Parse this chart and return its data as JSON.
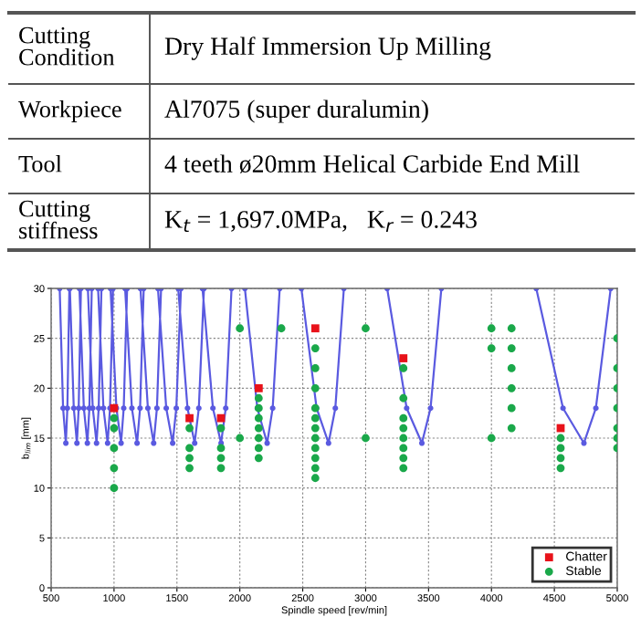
{
  "chart_data": [
    {
      "type": "other",
      "annotations": [
        "Cutting\nCondition",
        "Dry Half Immersion Up Milling",
        "Workpiece",
        "Al7075 (super duralumin)",
        "Tool",
        "4 teeth ø20mm Helical Carbide End Mill",
        "Cutting\nstiffness",
        "K$_{t}$ = 1,697.0MPa,   K$_{r}$ = 0.243"
      ]
    },
    {
      "type": "line",
      "xlabel": "Spindle speed [rev/min]",
      "ylabel": "b$_{lim}$ [mm]",
      "xlim": [
        500,
        5000
      ],
      "ylim": [
        0,
        30
      ],
      "xticks": [
        500,
        1000,
        1500,
        2000,
        2500,
        3000,
        3500,
        4000,
        4500,
        5000
      ],
      "yticks": [
        0,
        5,
        10,
        15,
        20,
        25,
        30
      ],
      "grid": true,
      "legend": "bottom right",
      "series": [
        {
          "type": "line",
          "color": "#5a5ae0",
          "marker": "circle",
          "line_style": "solid",
          "x": [
            568,
            595,
            617,
            629,
            645,
            null,
            649,
            680,
            705,
            719,
            737,
            null,
            725,
            760,
            788,
            804,
            823,
            null,
            792,
            831,
            861,
            878,
            900,
            null,
            873,
            916,
            949,
            968,
            992,
            null,
            972,
            1019,
            1056,
            1077,
            1104,
            null,
            1088,
            1142,
            1183,
            1207,
            1236,
            null,
            1210,
            1269,
            1315,
            1341,
            1374,
            null,
            1349,
            1415,
            1466,
            1495,
            1532,
            null,
            1510,
            1584,
            1641,
            1674,
            1715,
            null,
            1703,
            1786,
            1851,
            1888,
            1934,
            null,
            2040,
            2139,
            2217,
            2261,
            2317,
            null,
            2489,
            2610,
            2705,
            2759,
            2827,
            null,
            3171,
            3326,
            3447,
            3516,
            3602,
            null,
            4356,
            4569,
            4735,
            4830,
            4948
          ],
          "values": [
            30,
            18,
            14.5,
            18,
            30,
            null,
            30,
            18,
            14.5,
            18,
            30,
            null,
            30,
            18,
            14.5,
            18,
            30,
            null,
            30,
            18,
            14.5,
            18,
            30,
            null,
            30,
            18,
            14.5,
            18,
            30,
            null,
            30,
            18,
            14.5,
            18,
            30,
            null,
            30,
            18,
            14.5,
            18,
            30,
            null,
            30,
            18,
            14.5,
            18,
            30,
            null,
            30,
            18,
            14.5,
            18,
            30,
            null,
            30,
            18,
            14.5,
            18,
            30,
            null,
            30,
            18,
            14.5,
            18,
            30,
            null,
            30,
            18,
            14.5,
            18,
            30,
            null,
            30,
            18,
            14.5,
            18,
            30,
            null,
            30,
            18,
            14.5,
            18,
            30,
            null,
            30,
            18,
            14.5,
            18,
            30
          ]
        },
        {
          "type": "scatter",
          "name": "Chatter",
          "color": "#e8121a",
          "marker": "square",
          "x": [
            1000,
            1600,
            1850,
            2150,
            2600,
            3300,
            4550
          ],
          "values": [
            18,
            17,
            17,
            20,
            26,
            23,
            16
          ]
        },
        {
          "type": "scatter",
          "name": "Stable",
          "color": "#1aa84a",
          "marker": "circle",
          "x": [
            1000,
            1000,
            1000,
            1000,
            1000,
            1600,
            1600,
            1600,
            1600,
            1850,
            1850,
            1850,
            1850,
            2000,
            2000,
            2150,
            2150,
            2150,
            2150,
            2150,
            2150,
            2150,
            2330,
            2600,
            2600,
            2600,
            2600,
            2600,
            2600,
            2600,
            2600,
            2600,
            2600,
            2600,
            3000,
            3000,
            3300,
            3300,
            3300,
            3300,
            3300,
            3300,
            3300,
            3300,
            4000,
            4000,
            4000,
            4160,
            4160,
            4160,
            4160,
            4160,
            4160,
            4550,
            4550,
            4550,
            4550,
            5000,
            5000,
            5000,
            5000,
            5000,
            5000,
            5000
          ],
          "values": [
            17,
            16,
            14,
            12,
            10,
            16,
            14,
            13,
            12,
            16,
            14,
            13,
            12,
            26,
            15,
            19,
            18,
            17,
            16,
            15,
            14,
            13,
            26,
            24,
            22,
            20,
            18,
            17,
            16,
            15,
            14,
            13,
            12,
            11,
            26,
            15,
            22,
            19,
            17,
            16,
            15,
            14,
            13,
            12,
            26,
            24,
            15,
            26,
            24,
            22,
            20,
            18,
            16,
            15,
            14,
            13,
            12,
            25,
            22,
            20,
            18,
            16,
            15,
            14
          ]
        }
      ]
    }
  ]
}
